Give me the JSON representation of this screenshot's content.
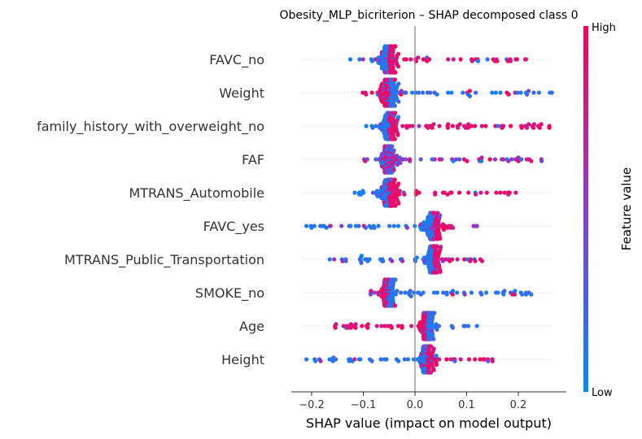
{
  "chart_data": {
    "type": "scatter",
    "subtype": "shap-beeswarm",
    "title": "Obesity_MLP_bicriterion – SHAP decomposed class 0",
    "xlabel": "SHAP value (impact on model output)",
    "xlim": [
      -0.235,
      0.28
    ],
    "xticks": [
      "−0.2",
      "−0.1",
      "0.0",
      "0.1",
      "0.2"
    ],
    "xtick_values": [
      -0.2,
      -0.1,
      0.0,
      0.1,
      0.2
    ],
    "colorbar": {
      "label": "Feature value",
      "high": "High",
      "low": "Low",
      "color_low": "#008afb",
      "color_high": "#ff0052"
    },
    "features": [
      {
        "name": "FAVC_no",
        "min": -0.145,
        "max": 0.215,
        "center": -0.05,
        "spread": 0.04,
        "low_side": "negative",
        "outliers": [
          0.18,
          0.195,
          0.215
        ]
      },
      {
        "name": "Weight",
        "min": -0.11,
        "max": 0.265,
        "center": -0.05,
        "spread": 0.04,
        "low_side": "positive",
        "outliers": [
          0.22,
          0.24,
          0.265
        ]
      },
      {
        "name": "family_history_with_overweight_no",
        "min": -0.095,
        "max": 0.26,
        "center": -0.05,
        "spread": 0.04,
        "low_side": "negative",
        "outliers": [
          0.22,
          0.24,
          0.26
        ]
      },
      {
        "name": "FAF",
        "min": -0.1,
        "max": 0.245,
        "center": -0.05,
        "spread": 0.03,
        "low_side": "mixed",
        "outliers": [
          0.2,
          0.225,
          0.245
        ]
      },
      {
        "name": "MTRANS_Automobile",
        "min": -0.125,
        "max": 0.195,
        "center": -0.05,
        "spread": 0.04,
        "low_side": "negative",
        "outliers": [
          0.165,
          0.18,
          0.195
        ]
      },
      {
        "name": "FAVC_yes",
        "min": -0.21,
        "max": 0.12,
        "center": 0.035,
        "spread": 0.035,
        "low_side": "negative",
        "outliers": [
          -0.21,
          -0.18,
          0.12
        ]
      },
      {
        "name": "MTRANS_Public_Transportation",
        "min": -0.165,
        "max": 0.13,
        "center": 0.035,
        "spread": 0.035,
        "low_side": "negative",
        "outliers": [
          -0.165,
          -0.14,
          0.13
        ]
      },
      {
        "name": "SMOKE_no",
        "min": -0.09,
        "max": 0.225,
        "center": -0.05,
        "spread": 0.035,
        "low_side": "positive",
        "outliers": [
          0.185,
          0.205,
          0.225
        ]
      },
      {
        "name": "Age",
        "min": -0.155,
        "max": 0.12,
        "center": 0.025,
        "spread": 0.03,
        "low_side": "positive",
        "outliers": [
          -0.155,
          -0.13,
          0.12
        ]
      },
      {
        "name": "Height",
        "min": -0.21,
        "max": 0.15,
        "center": 0.025,
        "spread": 0.035,
        "low_side": "negative",
        "outliers": [
          -0.21,
          -0.185,
          0.15
        ]
      }
    ]
  }
}
